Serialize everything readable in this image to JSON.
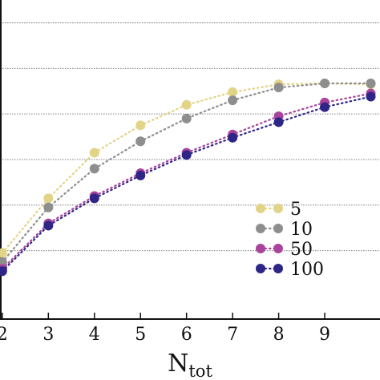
{
  "chart_data": {
    "type": "line",
    "xlabel": "N",
    "xlabel_subscript": "tot",
    "ylabel": "",
    "x_ticks": [
      "2",
      "3",
      "4",
      "5",
      "6",
      "7",
      "8",
      "9"
    ],
    "xlim": [
      1.95,
      10.2
    ],
    "ylim": [
      0,
      7
    ],
    "grid": {
      "horizontal": true,
      "style": "dotted"
    },
    "gridlines_y": [
      1.5,
      2.5,
      3.5,
      4.5,
      5.5,
      6.5
    ],
    "legend_position": "center-right",
    "series": [
      {
        "name": "5",
        "color": "#e2d486",
        "x": [
          2,
          3,
          4,
          5,
          6,
          7,
          8,
          9,
          10
        ],
        "y": [
          1.45,
          2.65,
          3.65,
          4.25,
          4.7,
          4.98,
          5.15,
          5.17,
          5.15
        ]
      },
      {
        "name": "10",
        "color": "#8e8e8e",
        "x": [
          2,
          3,
          4,
          5,
          6,
          7,
          8,
          9,
          10
        ],
        "y": [
          1.25,
          2.45,
          3.3,
          3.9,
          4.4,
          4.8,
          5.08,
          5.17,
          5.17
        ]
      },
      {
        "name": "50",
        "color": "#a8449b",
        "x": [
          2,
          3,
          4,
          5,
          6,
          7,
          8,
          9,
          10
        ],
        "y": [
          1.1,
          2.1,
          2.7,
          3.2,
          3.65,
          4.05,
          4.45,
          4.75,
          4.95
        ]
      },
      {
        "name": "100",
        "color": "#2e2586",
        "x": [
          2,
          3,
          4,
          5,
          6,
          7,
          8,
          9,
          10
        ],
        "y": [
          1.05,
          2.05,
          2.65,
          3.15,
          3.6,
          3.98,
          4.32,
          4.65,
          4.88
        ]
      }
    ]
  }
}
